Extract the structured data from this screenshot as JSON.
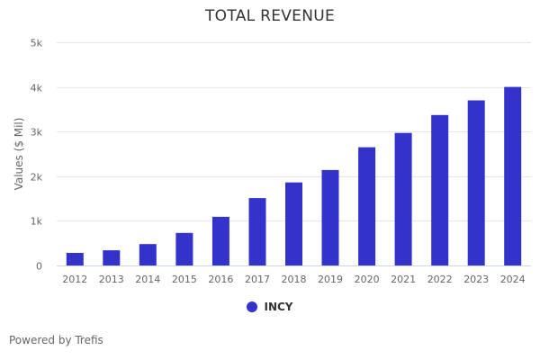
{
  "chart_data": {
    "type": "bar",
    "title": "TOTAL REVENUE",
    "xlabel": "",
    "ylabel": "Values ($ Mil)",
    "categories": [
      "2012",
      "2013",
      "2014",
      "2015",
      "2016",
      "2017",
      "2018",
      "2019",
      "2020",
      "2021",
      "2022",
      "2023",
      "2024"
    ],
    "series": [
      {
        "name": "INCY",
        "color": "#3333cc",
        "values": [
          282,
          340,
          480,
          730,
          1090,
          1510,
          1860,
          2140,
          2650,
          2970,
          3370,
          3700,
          4000
        ]
      }
    ],
    "ylim": [
      0,
      5000
    ],
    "yticks": [
      0,
      1000,
      2000,
      3000,
      4000,
      5000
    ],
    "ytick_labels": [
      "0",
      "1k",
      "2k",
      "3k",
      "4k",
      "5k"
    ],
    "grid": true,
    "legend_position": "bottom-center"
  },
  "footer": {
    "text": "Powered by Trefis"
  }
}
